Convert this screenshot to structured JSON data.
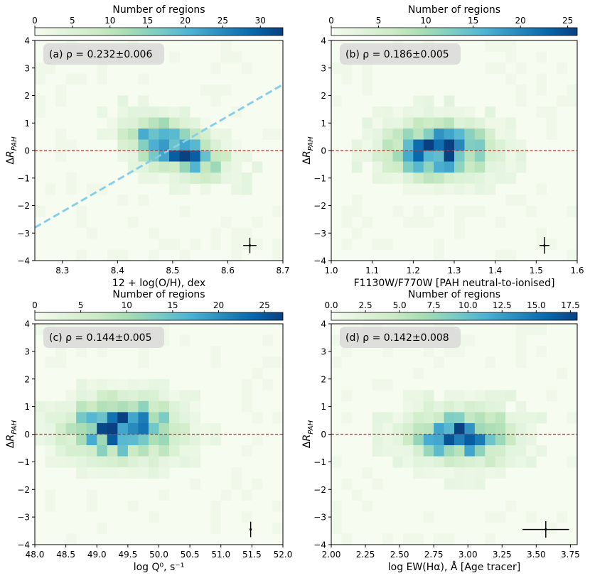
{
  "colors": {
    "cmap": [
      "#f7fcf0",
      "#e0f3db",
      "#ccebc5",
      "#a8ddb5",
      "#7bccc4",
      "#4eb3d3",
      "#2b8cbe",
      "#0868ac",
      "#084081"
    ],
    "zero_line": "#d62728",
    "fit_line": "#87ceeb",
    "annot_box": "#d9d9d9"
  },
  "chart_data": [
    {
      "type": "heatmap",
      "panel": "a",
      "annotation": "(a) ρ = 0.232±0.006",
      "xlabel": "12 + log(O/H), dex",
      "ylabel": "ΔR_PAH",
      "xlim": [
        8.25,
        8.7
      ],
      "ylim": [
        -4,
        4
      ],
      "xticks": [
        8.3,
        8.4,
        8.5,
        8.6,
        8.7
      ],
      "xtick_labels": [
        "8.3",
        "8.4",
        "8.5",
        "8.6",
        "8.7"
      ],
      "yticks": [
        -4,
        -3,
        -2,
        -1,
        0,
        1,
        2,
        3,
        4
      ],
      "ytick_labels": [
        "−4",
        "−3",
        "−2",
        "−1",
        "0",
        "1",
        "2",
        "3",
        "4"
      ],
      "colorbar": {
        "label": "Number of regions",
        "range": [
          0,
          33
        ],
        "ticks": [
          0,
          5,
          10,
          15,
          20,
          25,
          30
        ],
        "tick_labels": [
          "0",
          "5",
          "10",
          "15",
          "20",
          "25",
          "30"
        ]
      },
      "zero_line": 0,
      "fit_line": {
        "x": [
          8.25,
          8.7
        ],
        "y": [
          -2.8,
          2.4
        ]
      },
      "error_bar": {
        "x": 8.64,
        "y": -3.45,
        "xerr": 0.012,
        "yerr": 0.28
      },
      "bins": {
        "nx": 24,
        "ny": 20
      }
    },
    {
      "type": "heatmap",
      "panel": "b",
      "annotation": "(b) ρ = 0.186±0.005",
      "xlabel": "F1130W/F770W [PAH neutral-to-ionised]",
      "ylabel": "ΔR_PAH",
      "xlim": [
        1.0,
        1.6
      ],
      "ylim": [
        -4,
        4
      ],
      "xticks": [
        1.0,
        1.1,
        1.2,
        1.3,
        1.4,
        1.5,
        1.6
      ],
      "xtick_labels": [
        "1.0",
        "1.1",
        "1.2",
        "1.3",
        "1.4",
        "1.5",
        "1.6"
      ],
      "yticks": [
        -4,
        -3,
        -2,
        -1,
        0,
        1,
        2,
        3,
        4
      ],
      "ytick_labels": [
        "−4",
        "−3",
        "−2",
        "−1",
        "0",
        "1",
        "2",
        "3",
        "4"
      ],
      "colorbar": {
        "label": "Number of regions",
        "range": [
          0,
          26
        ],
        "ticks": [
          0,
          5,
          10,
          15,
          20,
          25
        ],
        "tick_labels": [
          "0",
          "5",
          "10",
          "15",
          "20",
          "25"
        ]
      },
      "zero_line": 0,
      "error_bar": {
        "x": 1.52,
        "y": -3.45,
        "xerr": 0.012,
        "yerr": 0.3
      },
      "bins": {
        "nx": 24,
        "ny": 20
      }
    },
    {
      "type": "heatmap",
      "panel": "c",
      "annotation": "(c) ρ = 0.144±0.005",
      "xlabel": "log Q⁰, s⁻¹",
      "ylabel": "ΔR_PAH",
      "xlim": [
        48.0,
        52.0
      ],
      "ylim": [
        -4,
        4
      ],
      "xticks": [
        48.0,
        48.5,
        49.0,
        49.5,
        50.0,
        50.5,
        51.0,
        51.5,
        52.0
      ],
      "xtick_labels": [
        "48.0",
        "48.5",
        "49.0",
        "49.5",
        "50.0",
        "50.5",
        "51.0",
        "51.5",
        "52.0"
      ],
      "yticks": [
        -4,
        -3,
        -2,
        -1,
        0,
        1,
        2,
        3,
        4
      ],
      "ytick_labels": [
        "−4",
        "−3",
        "−2",
        "−1",
        "0",
        "1",
        "2",
        "3",
        "4"
      ],
      "colorbar": {
        "label": "Number of regions",
        "range": [
          0,
          27
        ],
        "ticks": [
          0,
          5,
          10,
          15,
          20,
          25
        ],
        "tick_labels": [
          "0",
          "5",
          "10",
          "15",
          "20",
          "25"
        ]
      },
      "zero_line": 0,
      "error_bar": {
        "x": 51.48,
        "y": -3.45,
        "xerr": 0.01,
        "yerr": 0.28
      },
      "bins": {
        "nx": 24,
        "ny": 20
      }
    },
    {
      "type": "heatmap",
      "panel": "d",
      "annotation": "(d) ρ = 0.142±0.008",
      "xlabel": "log EW(Hα), Å [Age tracer]",
      "ylabel": "ΔR_PAH",
      "xlim": [
        2.0,
        3.8
      ],
      "ylim": [
        -4,
        4
      ],
      "xticks": [
        2.0,
        2.25,
        2.5,
        2.75,
        3.0,
        3.25,
        3.5,
        3.75
      ],
      "xtick_labels": [
        "2.00",
        "2.25",
        "2.50",
        "2.75",
        "3.00",
        "3.25",
        "3.50",
        "3.75"
      ],
      "yticks": [
        -4,
        -3,
        -2,
        -1,
        0,
        1,
        2,
        3,
        4
      ],
      "ytick_labels": [
        "−4",
        "−3",
        "−2",
        "−1",
        "0",
        "1",
        "2",
        "3",
        "4"
      ],
      "colorbar": {
        "label": "Number of regions",
        "range": [
          0,
          18
        ],
        "ticks": [
          0,
          2.5,
          5,
          7.5,
          10,
          12.5,
          15,
          17.5
        ],
        "tick_labels": [
          "0.0",
          "2.5",
          "5.0",
          "7.5",
          "10.0",
          "12.5",
          "15.0",
          "17.5"
        ]
      },
      "zero_line": 0,
      "error_bar": {
        "x": 3.57,
        "y": -3.45,
        "xerr": 0.17,
        "yerr": 0.3
      },
      "bins": {
        "nx": 24,
        "ny": 20
      }
    }
  ]
}
